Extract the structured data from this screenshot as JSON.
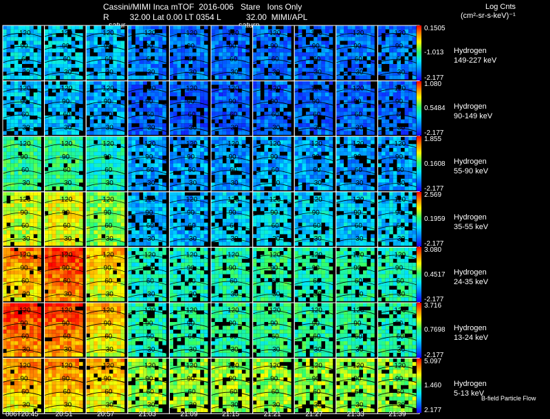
{
  "header": {
    "title": "Cassini/MIMI Inca mTOF  2016-006   Stare   Ions Only",
    "subtitle": "R         32.00 Lat 0.00 LT 0354 L           32.00  MIMI/APL",
    "units_line1": "Log Cnts",
    "units_line2": "(cm²-sr-s-keV)⁻¹",
    "saturn_label_left": "satur",
    "saturn_label_right": "saturn"
  },
  "footer": {
    "flow_label": "B-field Particle Flow"
  },
  "chart_data": {
    "type": "heatmap",
    "title": "Cassini/MIMI Inca mTOF  2016-006   Stare   Ions Only",
    "columns": [
      "006T20:45",
      "20:51",
      "20:57",
      "21:03",
      "21:09",
      "21:15",
      "21:21",
      "21:27",
      "21:33",
      "21:39"
    ],
    "contour_labels": [
      "120",
      "90",
      "60",
      "30"
    ],
    "colormap": [
      "#1a00ff",
      "#0066ff",
      "#00e5ff",
      "#33ff66",
      "#ffff00",
      "#ff8800",
      "#ff0000"
    ],
    "rows": [
      {
        "species": "Hydrogen",
        "energy": "149-227 keV",
        "max": "0.1505",
        "mid": "-1.013",
        "min": "-2.177",
        "levels": [
          0.3,
          0.3,
          0.28,
          0.2,
          0.18,
          0.17,
          0.17,
          0.17,
          0.18,
          0.18
        ]
      },
      {
        "species": "Hydrogen",
        "energy": "90-149 keV",
        "max": "1.080",
        "mid": "0.5484",
        "min": "-2.177",
        "levels": [
          0.3,
          0.28,
          0.25,
          0.16,
          0.15,
          0.15,
          0.16,
          0.16,
          0.16,
          0.16
        ]
      },
      {
        "species": "Hydrogen",
        "energy": "55-90 keV",
        "max": "1.855",
        "mid": "0.1608",
        "min": "-2.177",
        "levels": [
          0.46,
          0.46,
          0.4,
          0.25,
          0.24,
          0.24,
          0.25,
          0.25,
          0.24,
          0.24
        ]
      },
      {
        "species": "Hydrogen",
        "energy": "35-55 keV",
        "max": "2.569",
        "mid": "0.1959",
        "min": "-2.177",
        "levels": [
          0.62,
          0.66,
          0.55,
          0.27,
          0.26,
          0.3,
          0.33,
          0.32,
          0.3,
          0.3
        ]
      },
      {
        "species": "Hydrogen",
        "energy": "24-35 keV",
        "max": "3.080",
        "mid": "0.4517",
        "min": "-2.177",
        "levels": [
          0.68,
          0.78,
          0.6,
          0.4,
          0.4,
          0.42,
          0.44,
          0.42,
          0.42,
          0.42
        ]
      },
      {
        "species": "Hydrogen",
        "energy": "13-24 keV",
        "max": "3.716",
        "mid": "0.7698",
        "min": "-2.177",
        "levels": [
          0.78,
          0.76,
          0.62,
          0.42,
          0.42,
          0.44,
          0.46,
          0.44,
          0.44,
          0.44
        ]
      },
      {
        "species": "Hydrogen",
        "energy": "5-13 keV",
        "max": "5.097",
        "mid": "1.460",
        "min": "2.177",
        "levels": [
          0.66,
          0.66,
          0.62,
          0.58,
          0.57,
          0.58,
          0.58,
          0.58,
          0.57,
          0.56
        ]
      }
    ]
  }
}
